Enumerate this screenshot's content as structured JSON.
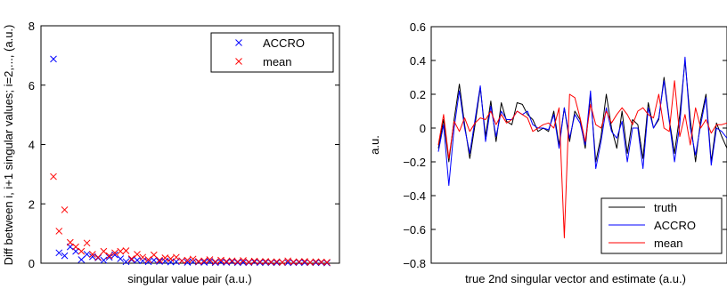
{
  "chart_data": [
    {
      "type": "scatter",
      "xlabel": "singular value pair (a.u.)",
      "ylabel": "Diff between i, i+1 singular values; i=2,..., (a.u.)",
      "ylim": [
        0,
        8
      ],
      "yticks": [
        0,
        2,
        4,
        6,
        8
      ],
      "grid": false,
      "legend": "top-right",
      "marker": "x",
      "series": [
        {
          "name": "ACCRO",
          "color": "#0000ff",
          "x": [
            1,
            2,
            3,
            4,
            5,
            6,
            7,
            8,
            9,
            10,
            11,
            12,
            13,
            14,
            15,
            16,
            17,
            18,
            19,
            20,
            21,
            22,
            23,
            24,
            25,
            26,
            27,
            28,
            29,
            30,
            31,
            32,
            33,
            34,
            35,
            36,
            37,
            38,
            39,
            40,
            41,
            42,
            43,
            44,
            45,
            46,
            47,
            48,
            49,
            50
          ],
          "y": [
            6.88,
            0.35,
            0.25,
            0.55,
            0.4,
            0.12,
            0.3,
            0.22,
            0.18,
            0.1,
            0.2,
            0.28,
            0.15,
            0.05,
            0.12,
            0.1,
            0.08,
            0.05,
            0.1,
            0.06,
            0.07,
            0.04,
            0.05,
            0.08,
            0.03,
            0.05,
            0.04,
            0.03,
            0.06,
            0.02,
            0.04,
            0.03,
            0.05,
            0.02,
            0.03,
            0.02,
            0.04,
            0.02,
            0.03,
            0.02,
            0.02,
            0.03,
            0.02,
            0.02,
            0.03,
            0.02,
            0.02,
            0.02,
            0.02,
            0.01
          ]
        },
        {
          "name": "mean",
          "color": "#ff0000",
          "x": [
            1,
            2,
            3,
            4,
            5,
            6,
            7,
            8,
            9,
            10,
            11,
            12,
            13,
            14,
            15,
            16,
            17,
            18,
            19,
            20,
            21,
            22,
            23,
            24,
            25,
            26,
            27,
            28,
            29,
            30,
            31,
            32,
            33,
            34,
            35,
            36,
            37,
            38,
            39,
            40,
            41,
            42,
            43,
            44,
            45,
            46,
            47,
            48,
            49,
            50
          ],
          "y": [
            2.92,
            1.08,
            1.8,
            0.7,
            0.55,
            0.4,
            0.68,
            0.3,
            0.2,
            0.4,
            0.25,
            0.35,
            0.4,
            0.42,
            0.15,
            0.3,
            0.2,
            0.12,
            0.28,
            0.1,
            0.18,
            0.15,
            0.2,
            0.08,
            0.1,
            0.14,
            0.06,
            0.08,
            0.12,
            0.05,
            0.1,
            0.06,
            0.08,
            0.05,
            0.09,
            0.04,
            0.07,
            0.05,
            0.06,
            0.04,
            0.05,
            0.03,
            0.08,
            0.04,
            0.05,
            0.06,
            0.03,
            0.05,
            0.04,
            0.03
          ]
        }
      ]
    },
    {
      "type": "line",
      "xlabel": "true 2nd singular vector and estimate (a.u.)",
      "ylabel": "a.u.",
      "ylim": [
        -0.8,
        0.6
      ],
      "yticks": [
        -0.8,
        -0.6,
        -0.4,
        -0.2,
        0,
        0.2,
        0.4,
        0.6
      ],
      "ytick_labels": [
        "−0.8",
        "−0.6",
        "−0.4",
        "−0.2",
        "0",
        "0.2",
        "0.4",
        "0.6"
      ],
      "grid": false,
      "legend": "bottom-right",
      "series": [
        {
          "name": "truth",
          "color": "#000000",
          "y": [
            -0.12,
            0.05,
            -0.2,
            0.05,
            0.26,
            0.02,
            -0.18,
            0.02,
            0.24,
            -0.05,
            0.16,
            -0.08,
            0.15,
            0.04,
            0.02,
            0.15,
            0.14,
            0.08,
            0.05,
            -0.02,
            0.0,
            -0.02,
            0.1,
            -0.1,
            0.12,
            -0.08,
            0.1,
            0.05,
            -0.12,
            0.2,
            -0.2,
            -0.05,
            0.2,
            0.0,
            -0.12,
            0.1,
            -0.15,
            0.05,
            0.02,
            -0.18,
            0.15,
            0.0,
            0.05,
            0.3,
            0.05,
            -0.15,
            0.08,
            0.4,
            0.05,
            -0.2,
            0.05,
            0.2,
            -0.2,
            0.03,
            -0.05,
            -0.12
          ]
        },
        {
          "name": "ACCRO",
          "color": "#0000ff",
          "y": [
            -0.14,
            0.02,
            -0.34,
            0.0,
            0.22,
            0.0,
            -0.15,
            0.05,
            0.25,
            -0.08,
            0.13,
            -0.05,
            0.1,
            0.05,
            0.05,
            0.1,
            0.08,
            0.1,
            0.02,
            0.0,
            0.0,
            -0.01,
            0.08,
            -0.12,
            0.12,
            -0.06,
            0.08,
            0.03,
            -0.1,
            0.22,
            -0.24,
            -0.08,
            0.12,
            -0.02,
            -0.06,
            0.04,
            -0.2,
            0.0,
            0.0,
            -0.24,
            0.12,
            0.0,
            0.06,
            0.28,
            0.04,
            -0.2,
            0.02,
            0.42,
            0.0,
            -0.16,
            0.02,
            0.18,
            -0.22,
            0.0,
            -0.02,
            -0.06
          ]
        },
        {
          "name": "mean",
          "color": "#ff0000",
          "y": [
            -0.1,
            0.08,
            -0.18,
            0.04,
            -0.02,
            0.06,
            -0.02,
            0.03,
            0.06,
            0.05,
            0.1,
            0.02,
            0.08,
            0.03,
            0.05,
            0.1,
            0.08,
            0.06,
            -0.02,
            0.0,
            0.02,
            0.03,
            0.0,
            0.12,
            -0.65,
            0.2,
            0.18,
            0.06,
            -0.08,
            0.14,
            0.02,
            0.0,
            0.1,
            0.03,
            0.08,
            0.12,
            0.08,
            0.02,
            0.1,
            0.12,
            0.08,
            0.06,
            0.2,
            0.0,
            -0.02,
            0.28,
            -0.05,
            0.08,
            -0.1,
            0.12,
            0.0,
            0.05,
            -0.03,
            0.02,
            0.02,
            0.03
          ]
        }
      ]
    }
  ]
}
